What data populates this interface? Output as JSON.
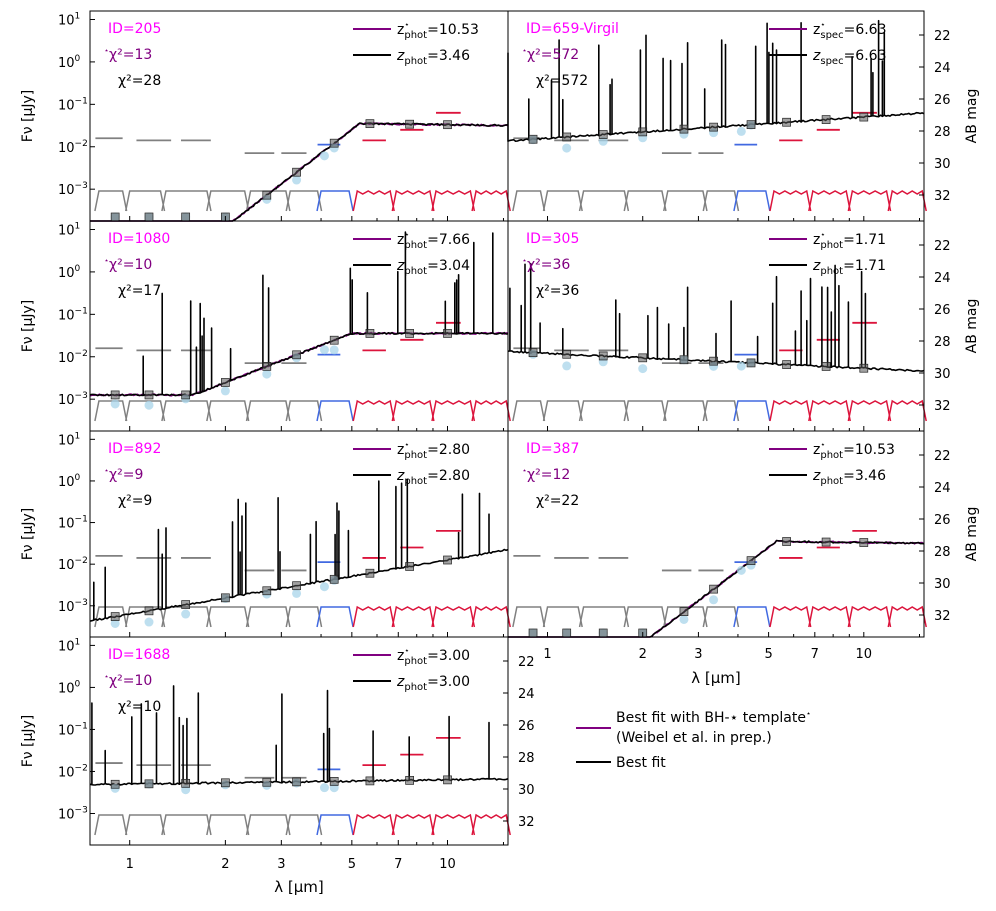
{
  "figure": {
    "y_label": "Fν [μJy]",
    "y2_label": "AB mag",
    "x_label": "λ [μm]",
    "x_ticks": [
      "1",
      "2",
      "3",
      "5",
      "7",
      "10"
    ],
    "y_ticks": [
      "10",
      "10",
      "10",
      "10",
      "10"
    ],
    "y_tick_exps": [
      "1",
      "0",
      "−1",
      "−2",
      "−3"
    ],
    "mag_ticks": [
      "22",
      "24",
      "26",
      "28",
      "30",
      "32"
    ]
  },
  "colors": {
    "magenta": "#ff00ff",
    "purple": "#800080",
    "black": "#000000",
    "gray": "#808080",
    "blue": "#4169e1",
    "red": "#dc143c",
    "lightblue": "#a8d4ea"
  },
  "legend": {
    "bh_label_line1": "Best fit with BH-",
    "bh_label_line1_star": "⋆",
    "bh_label_line1_tail": " template",
    "bh_label_line2": "(Weibel et al. in prep.)",
    "best_label": "Best fit"
  },
  "chart_data": [
    {
      "type": "line",
      "id": "ID=205",
      "chi2_star": "χ²=13",
      "chi2": "χ²=28",
      "z_star_label": "phot",
      "z_star": "=10.53",
      "z_label": "phot",
      "z": "=3.46",
      "template": "red"
    },
    {
      "type": "line",
      "id": "ID=659-Virgil",
      "chi2_star": "χ²=572",
      "chi2": "χ²=572",
      "z_star_label": "spec",
      "z_star": "=6.63",
      "z_label": "spec",
      "z": "=6.63",
      "template": "flat_high"
    },
    {
      "type": "line",
      "id": "ID=1080",
      "chi2_star": "χ²=10",
      "chi2": "χ²=17",
      "z_star_label": "phot",
      "z_star": "=7.66",
      "z_label": "phot",
      "z": "=3.04",
      "template": "red_mid"
    },
    {
      "type": "line",
      "id": "ID=305",
      "chi2_star": "χ²=36",
      "chi2": "χ²=36",
      "z_star_label": "phot",
      "z_star": "=1.71",
      "z_label": "phot",
      "z": "=1.71",
      "template": "flat"
    },
    {
      "type": "line",
      "id": "ID=892",
      "chi2_star": "χ²=9",
      "chi2": "χ²=9",
      "z_star_label": "phot",
      "z_star": "=2.80",
      "z_label": "phot",
      "z": "=2.80",
      "template": "rising_lines"
    },
    {
      "type": "line",
      "id": "ID=387",
      "chi2_star": "χ²=12",
      "chi2": "χ²=22",
      "z_star_label": "phot",
      "z_star": "=10.53",
      "z_label": "phot",
      "z": "=3.46",
      "template": "red"
    },
    {
      "type": "line",
      "id": "ID=1688",
      "chi2_star": "χ²=10",
      "chi2": "χ²=10",
      "z_star_label": "phot",
      "z_star": "=3.00",
      "z_label": "phot",
      "z": "=3.00",
      "template": "flat_lines"
    }
  ]
}
